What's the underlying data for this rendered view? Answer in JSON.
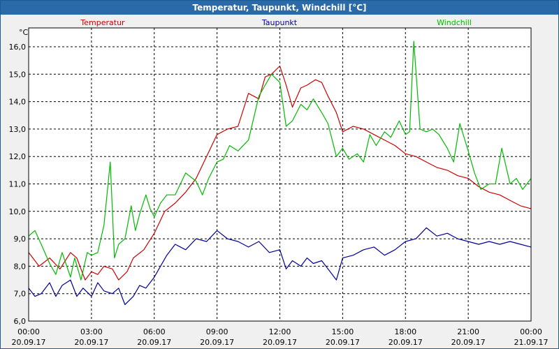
{
  "window_title": "Temperatur, Taupunkt, Windchill [°C]",
  "unit_label": "°C",
  "chart_data": {
    "type": "line",
    "title": "Temperatur, Taupunkt, Windchill [°C]",
    "ylabel": "°C",
    "xlabel": "",
    "ylim": [
      6.0,
      16.5
    ],
    "xlim": [
      0,
      24
    ],
    "grid": true,
    "y_ticks": [
      "6,0",
      "7,0",
      "8,0",
      "9,0",
      "10,0",
      "11,0",
      "12,0",
      "13,0",
      "14,0",
      "15,0",
      "16,0"
    ],
    "x_ticks": [
      {
        "time": "00:00",
        "date": "20.09.17"
      },
      {
        "time": "03:00",
        "date": "20.09.17"
      },
      {
        "time": "06:00",
        "date": "20.09.17"
      },
      {
        "time": "09:00",
        "date": "20.09.17"
      },
      {
        "time": "12:00",
        "date": "20.09.17"
      },
      {
        "time": "15:00",
        "date": "20.09.17"
      },
      {
        "time": "18:00",
        "date": "20.09.17"
      },
      {
        "time": "21:00",
        "date": "20.09.17"
      },
      {
        "time": "00:00",
        "date": "21.09.17"
      }
    ],
    "series": [
      {
        "name": "Temperatur",
        "color": "#cc0000",
        "x": [
          0,
          0.5,
          1,
          1.5,
          2,
          2.3,
          2.7,
          3,
          3.3,
          3.6,
          4,
          4.3,
          4.7,
          5,
          5.5,
          6,
          6.5,
          7,
          7.5,
          8,
          8.5,
          9,
          9.5,
          10,
          10.5,
          11,
          11.3,
          11.6,
          12,
          12.3,
          12.6,
          13,
          13.3,
          13.7,
          14,
          14.3,
          14.7,
          15,
          15.5,
          16,
          16.5,
          17,
          17.5,
          18,
          18.5,
          19,
          19.5,
          20,
          20.5,
          21,
          21.5,
          22,
          22.5,
          23,
          23.5,
          24
        ],
        "values": [
          8.5,
          8.0,
          8.3,
          7.9,
          8.5,
          8.3,
          7.5,
          7.8,
          7.7,
          8.0,
          7.9,
          7.5,
          7.8,
          8.3,
          8.6,
          9.2,
          10.0,
          10.3,
          10.7,
          11.2,
          12.0,
          12.8,
          13.0,
          13.1,
          14.3,
          14.1,
          14.9,
          15.0,
          15.3,
          14.6,
          13.8,
          14.5,
          14.6,
          14.8,
          14.7,
          14.2,
          13.6,
          12.9,
          13.1,
          13.0,
          12.8,
          12.6,
          12.4,
          12.1,
          12.0,
          11.8,
          11.6,
          11.5,
          11.3,
          11.2,
          10.9,
          10.7,
          10.6,
          10.4,
          10.2,
          10.1
        ]
      },
      {
        "name": "Taupunkt",
        "color": "#000099",
        "x": [
          0,
          0.3,
          0.6,
          1,
          1.3,
          1.6,
          2,
          2.3,
          2.6,
          3,
          3.3,
          3.6,
          4,
          4.3,
          4.6,
          5,
          5.3,
          5.6,
          6,
          6.3,
          6.6,
          7,
          7.5,
          8,
          8.5,
          9,
          9.5,
          10,
          10.5,
          11,
          11.5,
          12,
          12.3,
          12.6,
          13,
          13.3,
          13.6,
          14,
          14.3,
          14.7,
          15,
          15.5,
          16,
          16.5,
          17,
          17.5,
          18,
          18.5,
          19,
          19.5,
          20,
          20.5,
          21,
          21.5,
          22,
          22.5,
          23,
          23.5,
          24
        ],
        "values": [
          7.2,
          6.9,
          7.0,
          7.4,
          6.9,
          7.3,
          7.5,
          6.9,
          7.2,
          6.9,
          7.4,
          7.1,
          7.0,
          7.2,
          6.6,
          6.9,
          7.3,
          7.2,
          7.6,
          8.0,
          8.4,
          8.8,
          8.6,
          9.0,
          8.9,
          9.3,
          9.0,
          8.9,
          8.7,
          8.9,
          8.5,
          8.6,
          7.9,
          8.2,
          8.0,
          8.3,
          8.1,
          8.2,
          7.9,
          7.5,
          8.3,
          8.4,
          8.6,
          8.7,
          8.4,
          8.6,
          8.9,
          9.0,
          9.4,
          9.1,
          9.2,
          9.0,
          8.9,
          8.8,
          8.9,
          8.8,
          8.9,
          8.8,
          8.7
        ]
      },
      {
        "name": "Windchill",
        "color": "#00bb00",
        "x": [
          0,
          0.3,
          0.6,
          1,
          1.3,
          1.6,
          2,
          2.2,
          2.5,
          2.8,
          3,
          3.3,
          3.6,
          3.9,
          4.1,
          4.3,
          4.6,
          4.9,
          5.1,
          5.3,
          5.6,
          5.8,
          6,
          6.3,
          6.6,
          7,
          7.5,
          8,
          8.3,
          8.6,
          9,
          9.3,
          9.6,
          10,
          10.5,
          11,
          11.3,
          11.6,
          12,
          12.3,
          12.6,
          13,
          13.3,
          13.6,
          14,
          14.3,
          14.7,
          15,
          15.3,
          15.7,
          16,
          16.3,
          16.6,
          17,
          17.3,
          17.7,
          18,
          18.2,
          18.4,
          18.7,
          19,
          19.3,
          19.6,
          20,
          20.3,
          20.6,
          21,
          21.3,
          21.6,
          22,
          22.3,
          22.6,
          23,
          23.3,
          23.6,
          24
        ],
        "values": [
          9.1,
          9.3,
          8.8,
          8.1,
          7.7,
          8.5,
          7.6,
          8.3,
          7.5,
          8.5,
          8.4,
          8.5,
          9.5,
          11.8,
          8.3,
          8.8,
          9.0,
          10.2,
          9.3,
          9.9,
          10.6,
          10.1,
          9.8,
          10.3,
          10.6,
          10.6,
          11.4,
          11.1,
          10.6,
          11.2,
          11.8,
          11.9,
          12.4,
          12.2,
          12.6,
          14.2,
          14.6,
          15.0,
          14.7,
          13.1,
          13.3,
          13.9,
          13.7,
          14.1,
          13.6,
          13.2,
          12.0,
          12.3,
          11.9,
          12.1,
          11.8,
          12.8,
          12.4,
          12.9,
          12.7,
          13.3,
          12.8,
          12.9,
          16.2,
          13.0,
          12.9,
          13.0,
          12.8,
          12.3,
          11.8,
          13.2,
          12.2,
          11.4,
          10.8,
          11.0,
          11.0,
          12.3,
          11.0,
          11.2,
          10.8,
          11.2
        ]
      }
    ]
  }
}
